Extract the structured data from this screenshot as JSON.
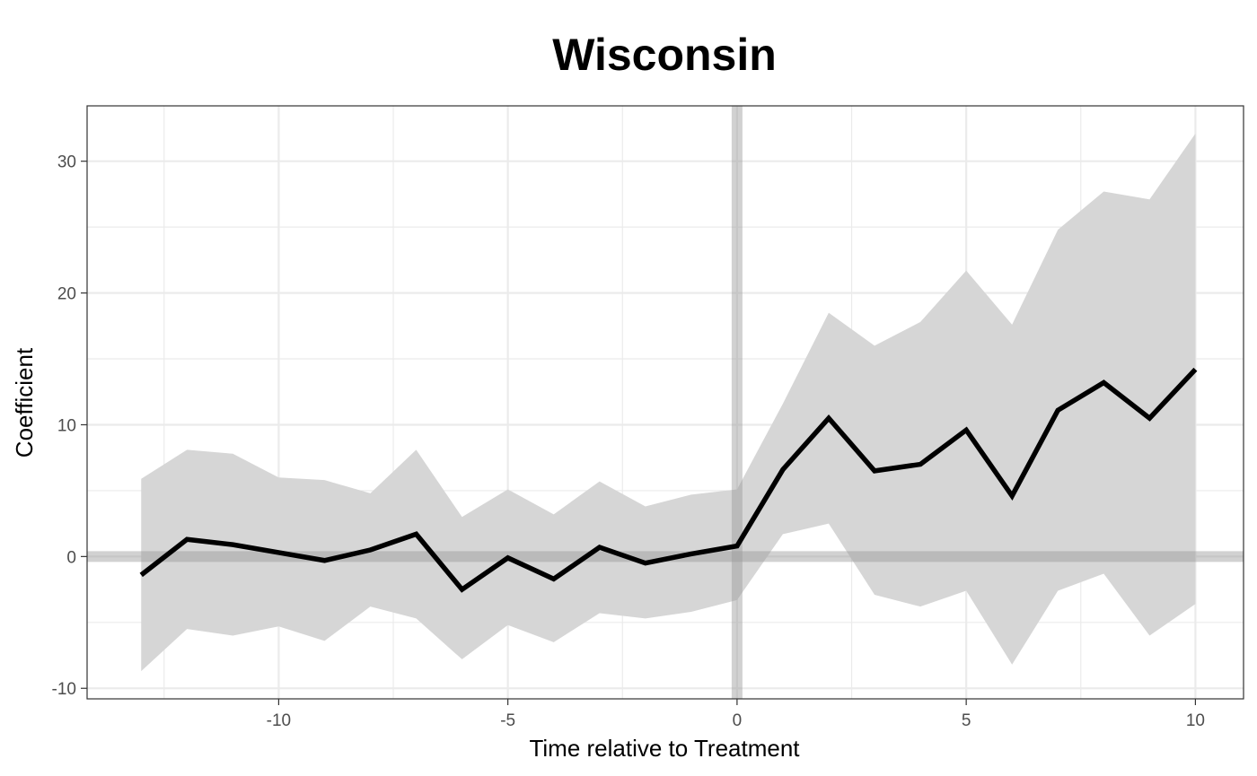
{
  "chart_data": {
    "type": "line",
    "title": "Wisconsin",
    "xlabel": "Time relative to Treatment",
    "ylabel": "Coefficient",
    "xlim": [
      -14.18,
      11.05
    ],
    "ylim": [
      -10.8,
      34.2
    ],
    "x_ticks": [
      -10,
      -5,
      0,
      5,
      10
    ],
    "x_tick_labels": [
      "-10",
      "-5",
      "0",
      "5",
      "10"
    ],
    "y_ticks": [
      -10,
      0,
      10,
      20,
      30
    ],
    "y_tick_labels": [
      "-10",
      "0",
      "10",
      "20",
      "30"
    ],
    "grid": true,
    "reference_lines": {
      "x": 0,
      "y": 0
    },
    "series": [
      {
        "x": [
          -13,
          -12,
          -11,
          -10,
          -9,
          -8,
          -7,
          -6,
          -5,
          -4,
          -3,
          -2,
          -1,
          0,
          1,
          2,
          3,
          4,
          5,
          6,
          7,
          8,
          9,
          10
        ],
        "values": [
          -1.4,
          1.3,
          0.9,
          0.3,
          -0.3,
          0.5,
          1.7,
          -2.5,
          -0.1,
          -1.7,
          0.7,
          -0.5,
          0.2,
          0.8,
          6.6,
          10.5,
          6.5,
          7.0,
          9.6,
          4.6,
          11.1,
          13.2,
          10.5,
          14.2
        ],
        "lower": [
          -8.7,
          -5.5,
          -6.0,
          -5.3,
          -6.4,
          -3.8,
          -4.7,
          -7.8,
          -5.2,
          -6.5,
          -4.3,
          -4.7,
          -4.2,
          -3.3,
          1.7,
          2.5,
          -2.9,
          -3.8,
          -2.6,
          -8.2,
          -2.6,
          -1.3,
          -6.0,
          -3.6
        ],
        "upper": [
          5.9,
          8.1,
          7.8,
          6.0,
          5.8,
          4.8,
          8.1,
          3.0,
          5.1,
          3.2,
          5.7,
          3.8,
          4.7,
          5.1,
          11.6,
          18.5,
          16.0,
          17.8,
          21.7,
          17.6,
          24.8,
          27.7,
          27.1,
          32.1
        ]
      }
    ],
    "colors": {
      "line": "#000000",
      "ribbon": "#d6d6d6",
      "reference": "#cccccc",
      "grid": "#ebebeb",
      "axis_text": "#4d4d4d",
      "panel_border": "#333333"
    }
  }
}
